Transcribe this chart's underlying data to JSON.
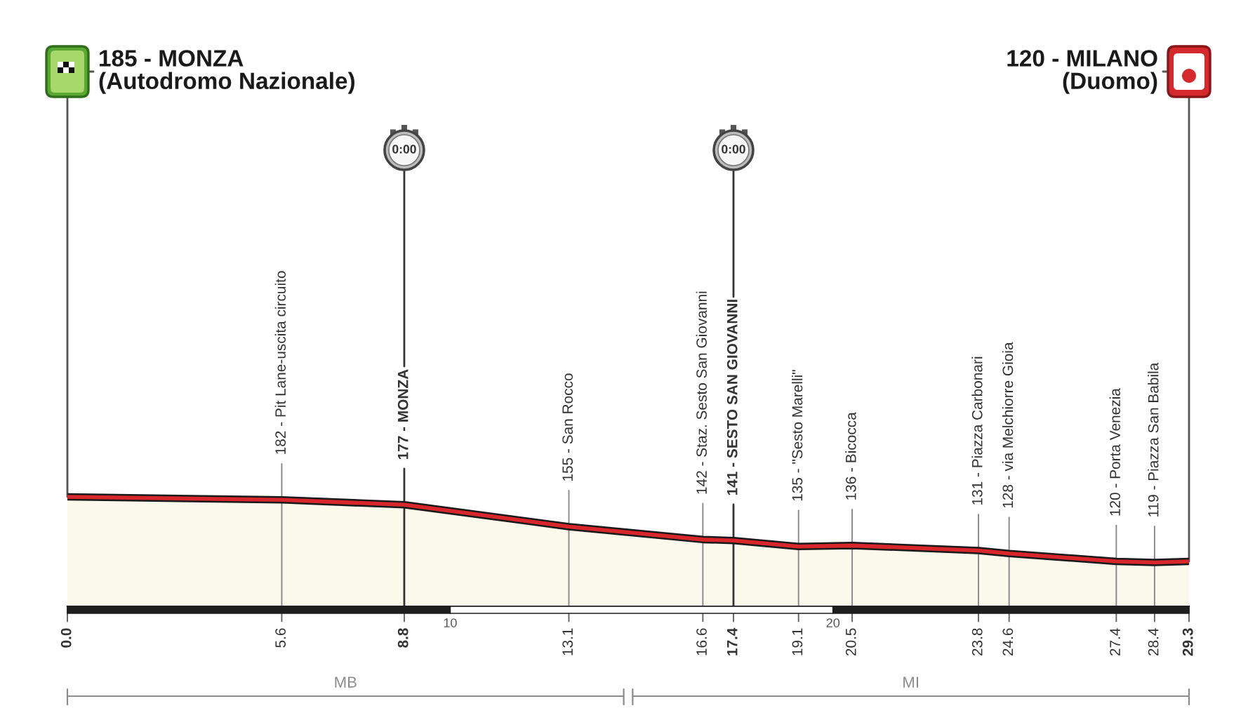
{
  "chart_data": {
    "type": "area",
    "color": "#fbf9ec",
    "x": [
      0.0,
      5.6,
      8.8,
      13.1,
      16.6,
      17.4,
      19.1,
      20.5,
      23.8,
      24.6,
      27.4,
      28.4,
      29.3
    ],
    "values": [
      185,
      182,
      177,
      155,
      142,
      141,
      135,
      136,
      131,
      128,
      120,
      119,
      120
    ],
    "value_labels": [
      "185 - MONZA\n(Autodromo Nazionale)",
      "182 - Pit Lane-uscita circuito",
      "177 - MONZA",
      "155 - San Rocco",
      "142 - Staz. Sesto San Giovanni",
      "141 - SESTO SAN GIOVANNI",
      "135 - \"Sesto Marelli\"",
      "136 - Bicocca",
      "131 - Piazza Carbonari",
      "128 - via Melchiorre Gioia",
      "120 - Porta Venezia",
      "119 - Piazza San Babila",
      "120 - MILANO\n(Duomo)"
    ],
    "xlim": [
      0.0,
      29.3
    ],
    "xticks": [
      {
        "value": 0.0,
        "label": "0.0"
      },
      5.6,
      8.8,
      13.1,
      16.6,
      17.4,
      19.1,
      20.5,
      23.8,
      24.6,
      27.4,
      28.4,
      29.3
    ],
    "x2lim": [
      0.0,
      29.3
    ],
    "x2ticks": [
      10,
      20
    ],
    "tick_labels": "x",
    "ref_lines": [
      {
        "axis": "x",
        "value": 8.8,
        "color": "#333333"
      },
      {
        "axis": "x",
        "value": 17.4,
        "color": "#333333"
      }
    ],
    "annotations": [
      "0:00",
      "0:00",
      "MB",
      "MI"
    ]
  }
}
